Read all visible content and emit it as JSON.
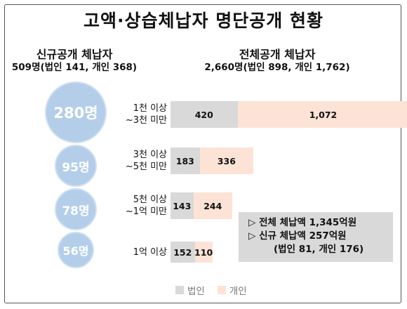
{
  "title": "고액·상습체납자 명단공개 현황",
  "left_header": {
    "line1": "신규공개 체납자",
    "line2": "509명(법인 141, 개인 368)"
  },
  "right_header": {
    "line1": "전체공개 체납자",
    "line2": "2,660명(법인 898, 개인 1,762)"
  },
  "colors": {
    "corp": "#d9d9d9",
    "indiv": "#fce3d6",
    "circle": "#b4ceea"
  },
  "summary": {
    "line1": "▷ 전체 체납액 1,345억원",
    "line2": "▷ 신규 체납액   257억원",
    "line3": "(법인 81, 개인 176)"
  },
  "chart_data": {
    "type": "bar",
    "orientation": "horizontal",
    "stacked": true,
    "categories": [
      [
        "1천 이상",
        "~3천 미만"
      ],
      [
        "3천 이상",
        "~5천 미만"
      ],
      [
        "5천 이상",
        "~1억 미만"
      ],
      [
        "1억 이상"
      ]
    ],
    "series": [
      {
        "name": "법인",
        "color": "#d9d9d9",
        "values": [
          420,
          183,
          143,
          152
        ]
      },
      {
        "name": "개인",
        "color": "#fce3d6",
        "values": [
          1072,
          336,
          244,
          110
        ]
      }
    ],
    "new_disclosure_counts": [
      "280명",
      "95명",
      "78명",
      "56명"
    ],
    "legend": [
      "법인",
      "개인"
    ],
    "legend_position": "bottom"
  }
}
